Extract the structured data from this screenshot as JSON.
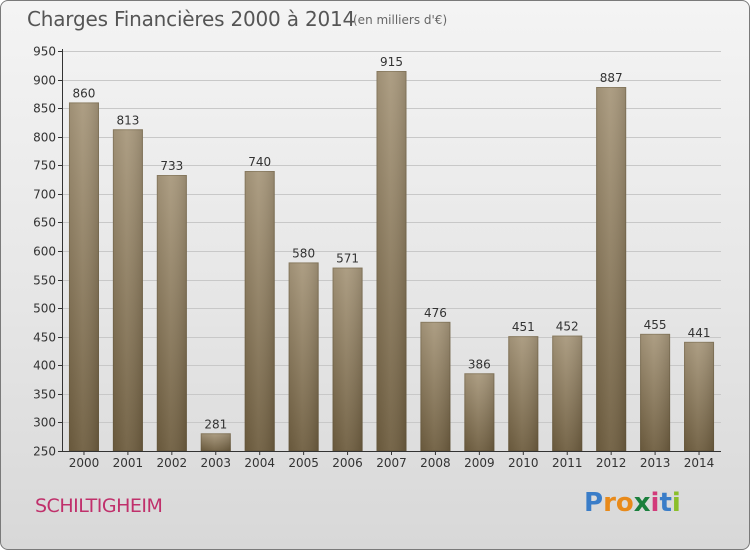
{
  "title": "Charges Financières 2000 à 2014",
  "subtitle": "(en milliers d'€)",
  "city": "SCHILTIGHEIM",
  "logo": {
    "letters": [
      "P",
      "r",
      "o",
      "x",
      "i",
      "t",
      "i"
    ],
    "colors": [
      "#3a7dc8",
      "#e88a1a",
      "#e88a1a",
      "#1a7f3c",
      "#d23a7a",
      "#3a7dc8",
      "#8bbf2a"
    ]
  },
  "colors": {
    "bar_top": "#a8987c",
    "bar_bottom": "#6e5d3f",
    "grid": "#c8c8c8",
    "axis": "#333333"
  },
  "chart_data": {
    "type": "bar",
    "title": "Charges Financières 2000 à 2014",
    "subtitle": "(en milliers d'€)",
    "categories": [
      "2000",
      "2001",
      "2002",
      "2003",
      "2004",
      "2005",
      "2006",
      "2007",
      "2008",
      "2009",
      "2010",
      "2011",
      "2012",
      "2013",
      "2014"
    ],
    "values": [
      860,
      813,
      733,
      281,
      740,
      580,
      571,
      915,
      476,
      386,
      451,
      452,
      887,
      455,
      441
    ],
    "ylim": [
      250,
      950
    ],
    "yticks": [
      250,
      300,
      350,
      400,
      450,
      500,
      550,
      600,
      650,
      700,
      750,
      800,
      850,
      900,
      950
    ],
    "grid": true
  }
}
